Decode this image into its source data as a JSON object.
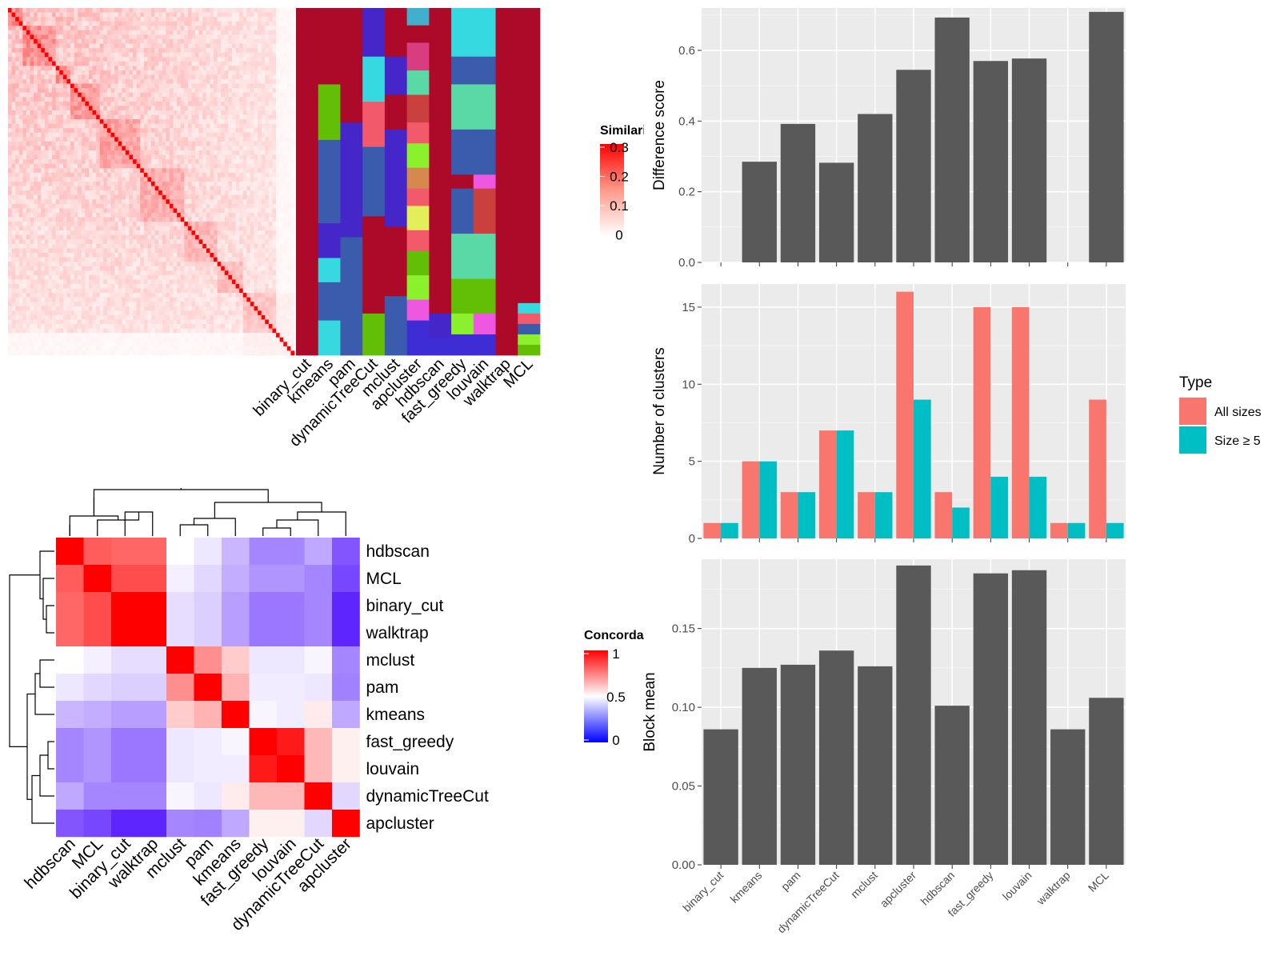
{
  "colors": {
    "panel_bg": "#ebebeb",
    "bar_dark": "#595959",
    "all_sizes": "#f8766d",
    "size_ge_5": "#00bfc4",
    "heat_high": "#ff0000",
    "heat_mid": "#ffffff",
    "heat_low": "#0000ff"
  },
  "chart_data": [
    {
      "id": "similarity",
      "type": "heatmap",
      "legend_title": "Similarity",
      "legend_ticks": [
        "0.3",
        "0.2",
        "0.1",
        "0"
      ],
      "cluster_columns": [
        "binary_cut",
        "kmeans",
        "pam",
        "dynamicTreeCut",
        "mclust",
        "apcluster",
        "hdbscan",
        "fast_greedy",
        "louvain",
        "walktrap",
        "MCL"
      ],
      "block_sizes": [
        4,
        9,
        4,
        8,
        11,
        12,
        9,
        7,
        14
      ]
    },
    {
      "id": "concordance",
      "type": "heatmap",
      "legend_title": "Concordance",
      "legend_ticks": [
        "1",
        "0.5",
        "0"
      ],
      "rows": [
        "hdbscan",
        "MCL",
        "binary_cut",
        "walktrap",
        "mclust",
        "pam",
        "kmeans",
        "fast_greedy",
        "louvain",
        "dynamicTreeCut",
        "apcluster"
      ],
      "columns": [
        "hdbscan",
        "MCL",
        "binary_cut",
        "walktrap",
        "mclust",
        "pam",
        "kmeans",
        "fast_greedy",
        "louvain",
        "dynamicTreeCut",
        "apcluster"
      ],
      "values": [
        [
          1.0,
          0.82,
          0.8,
          0.8,
          0.5,
          0.45,
          0.35,
          0.25,
          0.25,
          0.32,
          0.15
        ],
        [
          0.82,
          1.0,
          0.85,
          0.85,
          0.47,
          0.42,
          0.33,
          0.28,
          0.28,
          0.25,
          0.12
        ],
        [
          0.8,
          0.85,
          1.0,
          1.0,
          0.43,
          0.4,
          0.3,
          0.22,
          0.22,
          0.25,
          0.05
        ],
        [
          0.8,
          0.85,
          1.0,
          1.0,
          0.43,
          0.4,
          0.3,
          0.22,
          0.22,
          0.25,
          0.05
        ],
        [
          0.5,
          0.47,
          0.43,
          0.43,
          1.0,
          0.72,
          0.6,
          0.45,
          0.45,
          0.48,
          0.25
        ],
        [
          0.45,
          0.42,
          0.4,
          0.4,
          0.72,
          1.0,
          0.65,
          0.46,
          0.46,
          0.45,
          0.24
        ],
        [
          0.35,
          0.33,
          0.3,
          0.3,
          0.6,
          0.65,
          1.0,
          0.48,
          0.46,
          0.54,
          0.32
        ],
        [
          0.25,
          0.28,
          0.22,
          0.22,
          0.45,
          0.46,
          0.48,
          1.0,
          0.95,
          0.64,
          0.53
        ],
        [
          0.25,
          0.28,
          0.22,
          0.22,
          0.45,
          0.46,
          0.46,
          0.95,
          1.0,
          0.64,
          0.53
        ],
        [
          0.32,
          0.25,
          0.25,
          0.25,
          0.48,
          0.45,
          0.54,
          0.64,
          0.64,
          1.0,
          0.42
        ],
        [
          0.15,
          0.12,
          0.05,
          0.05,
          0.25,
          0.24,
          0.32,
          0.53,
          0.53,
          0.42,
          1.0
        ]
      ]
    },
    {
      "id": "difference",
      "type": "bar",
      "ylabel": "Difference score",
      "ylim": [
        0,
        0.72
      ],
      "yticks": [
        "0.0",
        "0.2",
        "0.4",
        "0.6"
      ],
      "categories": [
        "binary_cut",
        "kmeans",
        "pam",
        "dynamicTreeCut",
        "mclust",
        "apcluster",
        "hdbscan",
        "fast_greedy",
        "louvain",
        "walktrap",
        "MCL"
      ],
      "values": [
        0,
        0.285,
        0.392,
        0.282,
        0.42,
        0.545,
        0.693,
        0.57,
        0.577,
        0,
        0.709
      ]
    },
    {
      "id": "nclusters",
      "type": "bar",
      "ylabel": "Number of clusters",
      "ylim": [
        0,
        16.5
      ],
      "yticks": [
        "0",
        "5",
        "10",
        "15"
      ],
      "categories": [
        "binary_cut",
        "kmeans",
        "pam",
        "dynamicTreeCut",
        "mclust",
        "apcluster",
        "hdbscan",
        "fast_greedy",
        "louvain",
        "walktrap",
        "MCL"
      ],
      "legend_title": "Type",
      "series": [
        {
          "name": "All sizes",
          "values": [
            1,
            5,
            3,
            7,
            3,
            16,
            3,
            15,
            15,
            1,
            9
          ]
        },
        {
          "name": "Size ≥ 5",
          "values": [
            1,
            5,
            3,
            7,
            3,
            9,
            2,
            4,
            4,
            1,
            1
          ]
        }
      ]
    },
    {
      "id": "blockmean",
      "type": "bar",
      "ylabel": "Block mean",
      "ylim": [
        0,
        0.194
      ],
      "yticks": [
        "0.00",
        "0.05",
        "0.10",
        "0.15"
      ],
      "categories": [
        "binary_cut",
        "kmeans",
        "pam",
        "dynamicTreeCut",
        "mclust",
        "apcluster",
        "hdbscan",
        "fast_greedy",
        "louvain",
        "walktrap",
        "MCL"
      ],
      "values": [
        0.086,
        0.125,
        0.127,
        0.136,
        0.126,
        0.19,
        0.101,
        0.185,
        0.187,
        0.086,
        0.106
      ]
    }
  ]
}
